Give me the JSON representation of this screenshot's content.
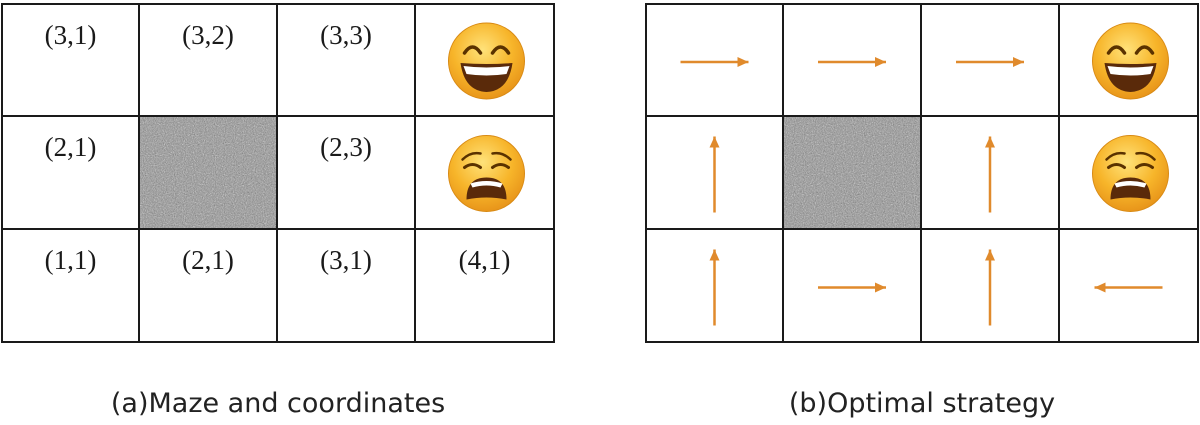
{
  "panels": [
    {
      "caption": "(a)Maze and coordinates",
      "rows": [
        [
          {
            "kind": "label",
            "text": "(3,1)"
          },
          {
            "kind": "label",
            "text": "(3,2)"
          },
          {
            "kind": "label",
            "text": "(3,3)"
          },
          {
            "kind": "emoji",
            "icon": "grinning-face-icon"
          }
        ],
        [
          {
            "kind": "label",
            "text": "(2,1)"
          },
          {
            "kind": "wall"
          },
          {
            "kind": "label",
            "text": "(2,3)"
          },
          {
            "kind": "emoji",
            "icon": "weary-face-icon"
          }
        ],
        [
          {
            "kind": "label",
            "text": "(1,1)"
          },
          {
            "kind": "label",
            "text": "(2,1)"
          },
          {
            "kind": "label",
            "text": "(3,1)"
          },
          {
            "kind": "label",
            "text": "(4,1)"
          }
        ]
      ]
    },
    {
      "caption": "(b)Optimal strategy",
      "rows": [
        [
          {
            "kind": "arrow",
            "dir": "right"
          },
          {
            "kind": "arrow",
            "dir": "right"
          },
          {
            "kind": "arrow",
            "dir": "right"
          },
          {
            "kind": "emoji",
            "icon": "grinning-face-icon"
          }
        ],
        [
          {
            "kind": "arrow",
            "dir": "up"
          },
          {
            "kind": "wall"
          },
          {
            "kind": "arrow",
            "dir": "up"
          },
          {
            "kind": "emoji",
            "icon": "weary-face-icon"
          }
        ],
        [
          {
            "kind": "arrow",
            "dir": "up"
          },
          {
            "kind": "arrow",
            "dir": "right"
          },
          {
            "kind": "arrow",
            "dir": "up"
          },
          {
            "kind": "arrow",
            "dir": "left"
          }
        ]
      ]
    }
  ],
  "colors": {
    "arrow": "#e08a2c",
    "grid": "#1a1a1a",
    "wall": "#8c8c8c",
    "emoji_face": "#f7b52a"
  }
}
